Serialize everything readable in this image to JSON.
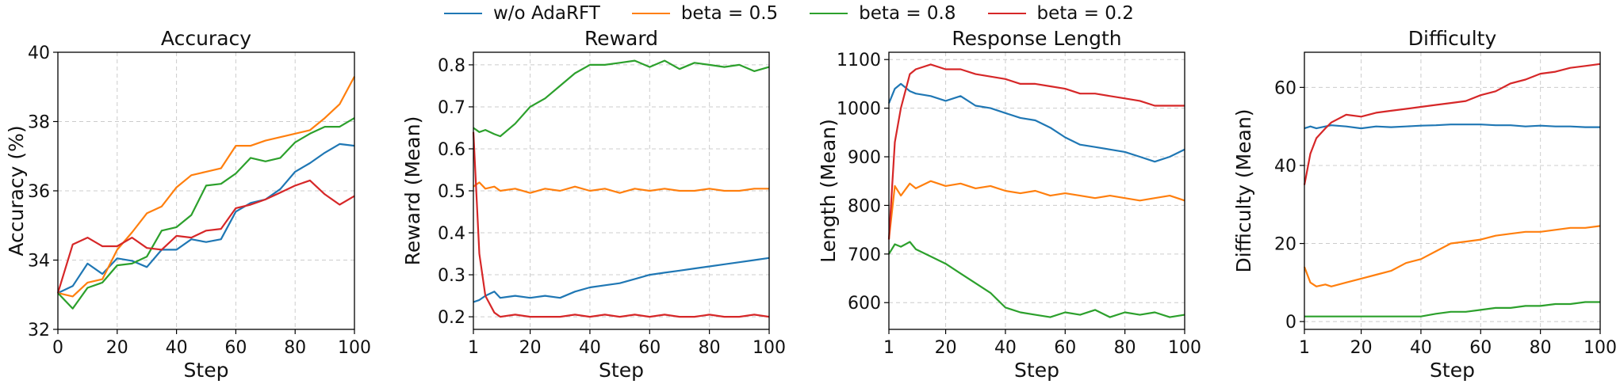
{
  "legend": {
    "entries": [
      {
        "label": "w/o AdaRFT",
        "color": "#1f77b4"
      },
      {
        "label": "beta = 0.5",
        "color": "#ff7f0e"
      },
      {
        "label": "beta = 0.8",
        "color": "#2ca02c"
      },
      {
        "label": "beta = 0.2",
        "color": "#d62728"
      }
    ]
  },
  "chart_data": [
    {
      "type": "line",
      "title": "Accuracy",
      "xlabel": "Step",
      "ylabel": "Accuracy (%)",
      "xlim": [
        0,
        100
      ],
      "ylim": [
        32,
        40
      ],
      "xticks": [
        0,
        20,
        40,
        60,
        80,
        100
      ],
      "yticks": [
        32,
        34,
        36,
        38,
        40
      ],
      "grid": true,
      "x": [
        0,
        5,
        10,
        15,
        20,
        25,
        30,
        35,
        40,
        45,
        50,
        55,
        60,
        65,
        70,
        75,
        80,
        85,
        90,
        95,
        100
      ],
      "series": [
        {
          "name": "w/o AdaRFT",
          "color": "#1f77b4",
          "values": [
            33.05,
            33.25,
            33.9,
            33.6,
            34.05,
            33.98,
            33.8,
            34.3,
            34.3,
            34.6,
            34.52,
            34.6,
            35.4,
            35.65,
            35.75,
            36.05,
            36.55,
            36.8,
            37.1,
            37.35,
            37.3
          ]
        },
        {
          "name": "beta = 0.5",
          "color": "#ff7f0e",
          "values": [
            33.05,
            32.95,
            33.35,
            33.45,
            34.3,
            34.8,
            35.35,
            35.55,
            36.1,
            36.45,
            36.55,
            36.65,
            37.3,
            37.3,
            37.45,
            37.55,
            37.65,
            37.75,
            38.1,
            38.5,
            39.3
          ]
        },
        {
          "name": "beta = 0.8",
          "color": "#2ca02c",
          "values": [
            33.05,
            32.6,
            33.2,
            33.35,
            33.85,
            33.9,
            34.1,
            34.85,
            34.95,
            35.3,
            36.15,
            36.2,
            36.5,
            36.95,
            36.85,
            36.95,
            37.4,
            37.65,
            37.85,
            37.85,
            38.1
          ]
        },
        {
          "name": "beta = 0.2",
          "color": "#d62728",
          "values": [
            33.05,
            34.45,
            34.65,
            34.4,
            34.4,
            34.65,
            34.35,
            34.3,
            34.7,
            34.65,
            34.85,
            34.9,
            35.5,
            35.6,
            35.75,
            35.95,
            36.15,
            36.3,
            35.9,
            35.6,
            35.85
          ]
        }
      ]
    },
    {
      "type": "line",
      "title": "Reward",
      "xlabel": "Step",
      "ylabel": "Reward (Mean)",
      "xlim": [
        1,
        100
      ],
      "ylim": [
        0.17,
        0.83
      ],
      "xticks": [
        1,
        20,
        40,
        60,
        80,
        100
      ],
      "yticks": [
        0.2,
        0.3,
        0.4,
        0.5,
        0.6,
        0.7,
        0.8
      ],
      "grid": true,
      "x": [
        1,
        3,
        5,
        8,
        10,
        15,
        20,
        25,
        30,
        35,
        40,
        45,
        50,
        55,
        60,
        65,
        70,
        75,
        80,
        85,
        90,
        95,
        100
      ],
      "series": [
        {
          "name": "w/o AdaRFT",
          "color": "#1f77b4",
          "values": [
            0.235,
            0.24,
            0.25,
            0.26,
            0.245,
            0.25,
            0.245,
            0.25,
            0.245,
            0.26,
            0.27,
            0.275,
            0.28,
            0.29,
            0.3,
            0.305,
            0.31,
            0.315,
            0.32,
            0.325,
            0.33,
            0.335,
            0.34
          ]
        },
        {
          "name": "beta = 0.5",
          "color": "#ff7f0e",
          "values": [
            0.51,
            0.52,
            0.505,
            0.51,
            0.5,
            0.505,
            0.495,
            0.505,
            0.5,
            0.51,
            0.5,
            0.505,
            0.495,
            0.505,
            0.5,
            0.505,
            0.5,
            0.5,
            0.505,
            0.5,
            0.5,
            0.505,
            0.505
          ]
        },
        {
          "name": "beta = 0.8",
          "color": "#2ca02c",
          "values": [
            0.65,
            0.64,
            0.645,
            0.635,
            0.63,
            0.66,
            0.7,
            0.72,
            0.75,
            0.78,
            0.8,
            0.8,
            0.805,
            0.81,
            0.795,
            0.81,
            0.79,
            0.805,
            0.8,
            0.795,
            0.8,
            0.785,
            0.795
          ]
        },
        {
          "name": "beta = 0.2",
          "color": "#d62728",
          "values": [
            0.64,
            0.35,
            0.25,
            0.21,
            0.2,
            0.205,
            0.2,
            0.2,
            0.2,
            0.205,
            0.2,
            0.205,
            0.2,
            0.205,
            0.2,
            0.205,
            0.2,
            0.2,
            0.205,
            0.2,
            0.2,
            0.205,
            0.2
          ]
        }
      ]
    },
    {
      "type": "line",
      "title": "Response Length",
      "xlabel": "Step",
      "ylabel": "Length (Mean)",
      "xlim": [
        1,
        100
      ],
      "ylim": [
        545,
        1115
      ],
      "xticks": [
        1,
        20,
        40,
        60,
        80,
        100
      ],
      "yticks": [
        600,
        700,
        800,
        900,
        1000,
        1100
      ],
      "grid": true,
      "x": [
        1,
        3,
        5,
        8,
        10,
        15,
        20,
        25,
        30,
        35,
        40,
        45,
        50,
        55,
        60,
        65,
        70,
        75,
        80,
        85,
        90,
        95,
        100
      ],
      "series": [
        {
          "name": "w/o AdaRFT",
          "color": "#1f77b4",
          "values": [
            1010,
            1040,
            1050,
            1035,
            1030,
            1025,
            1015,
            1025,
            1005,
            1000,
            990,
            980,
            975,
            960,
            940,
            925,
            920,
            915,
            910,
            900,
            890,
            900,
            915
          ]
        },
        {
          "name": "beta = 0.5",
          "color": "#ff7f0e",
          "values": [
            730,
            840,
            820,
            845,
            835,
            850,
            840,
            845,
            835,
            840,
            830,
            825,
            830,
            820,
            825,
            820,
            815,
            820,
            815,
            810,
            815,
            820,
            810
          ]
        },
        {
          "name": "beta = 0.8",
          "color": "#2ca02c",
          "values": [
            700,
            720,
            715,
            725,
            710,
            695,
            680,
            660,
            640,
            620,
            590,
            580,
            575,
            570,
            580,
            575,
            585,
            570,
            580,
            575,
            580,
            570,
            575
          ]
        },
        {
          "name": "beta = 0.2",
          "color": "#d62728",
          "values": [
            730,
            930,
            1000,
            1070,
            1080,
            1090,
            1080,
            1080,
            1070,
            1065,
            1060,
            1050,
            1050,
            1045,
            1040,
            1030,
            1030,
            1025,
            1020,
            1015,
            1005,
            1005,
            1005
          ]
        }
      ]
    },
    {
      "type": "line",
      "title": "Difficulty",
      "xlabel": "Step",
      "ylabel": "Difficulty (Mean)",
      "xlim": [
        1,
        100
      ],
      "ylim": [
        -2,
        69
      ],
      "xticks": [
        1,
        20,
        40,
        60,
        80,
        100
      ],
      "yticks": [
        0,
        20,
        40,
        60
      ],
      "grid": true,
      "x": [
        1,
        3,
        5,
        8,
        10,
        15,
        20,
        25,
        30,
        35,
        40,
        45,
        50,
        55,
        60,
        65,
        70,
        75,
        80,
        85,
        90,
        95,
        100
      ],
      "series": [
        {
          "name": "w/o AdaRFT",
          "color": "#1f77b4",
          "values": [
            49.5,
            50,
            49.5,
            50,
            50.3,
            50,
            49.5,
            50,
            49.8,
            50,
            50.2,
            50.3,
            50.5,
            50.5,
            50.5,
            50.3,
            50.3,
            50,
            50.2,
            50,
            50,
            49.8,
            49.8
          ]
        },
        {
          "name": "beta = 0.5",
          "color": "#ff7f0e",
          "values": [
            14,
            10,
            9,
            9.5,
            9,
            10,
            11,
            12,
            13,
            15,
            16,
            18,
            20,
            20.5,
            21,
            22,
            22.5,
            23,
            23,
            23.5,
            24,
            24,
            24.5
          ]
        },
        {
          "name": "beta = 0.8",
          "color": "#2ca02c",
          "values": [
            1.3,
            1.3,
            1.3,
            1.3,
            1.3,
            1.3,
            1.3,
            1.3,
            1.3,
            1.3,
            1.3,
            2,
            2.5,
            2.5,
            3,
            3.5,
            3.5,
            4,
            4,
            4.5,
            4.5,
            5,
            5
          ]
        },
        {
          "name": "beta = 0.2",
          "color": "#d62728",
          "values": [
            35,
            43,
            47,
            49.5,
            51,
            53,
            52.5,
            53.5,
            54,
            54.5,
            55,
            55.5,
            56,
            56.5,
            58,
            59,
            61,
            62,
            63.5,
            64,
            65,
            65.5,
            66
          ]
        }
      ]
    }
  ]
}
